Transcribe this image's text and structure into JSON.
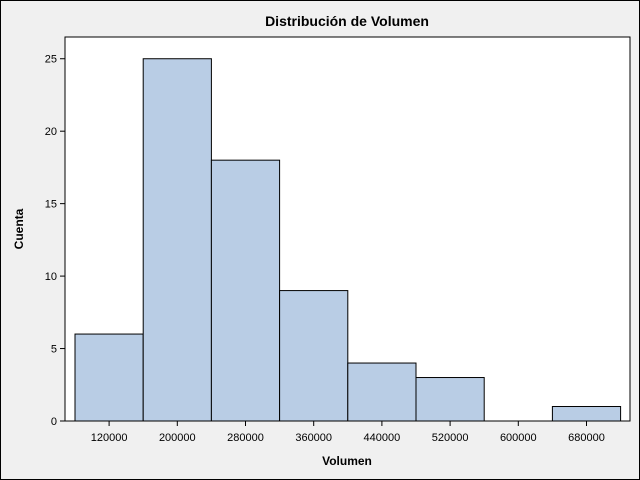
{
  "chart_data": {
    "type": "bar",
    "title": "Distribución de Volumen",
    "xlabel": "Volumen",
    "ylabel": "Cuenta",
    "categories": [
      "120000",
      "200000",
      "280000",
      "360000",
      "440000",
      "520000",
      "600000",
      "680000"
    ],
    "values": [
      6,
      25,
      18,
      9,
      4,
      3,
      0,
      1
    ],
    "yticks": [
      0,
      5,
      10,
      15,
      20,
      25
    ],
    "ylim": [
      0,
      26.5
    ],
    "grid": false,
    "legend": "none",
    "colors": {
      "bar_fill": "#b9cde5",
      "bar_stroke": "#000000",
      "plot_background": "#ffffff",
      "background": "#f0f0f0"
    }
  }
}
